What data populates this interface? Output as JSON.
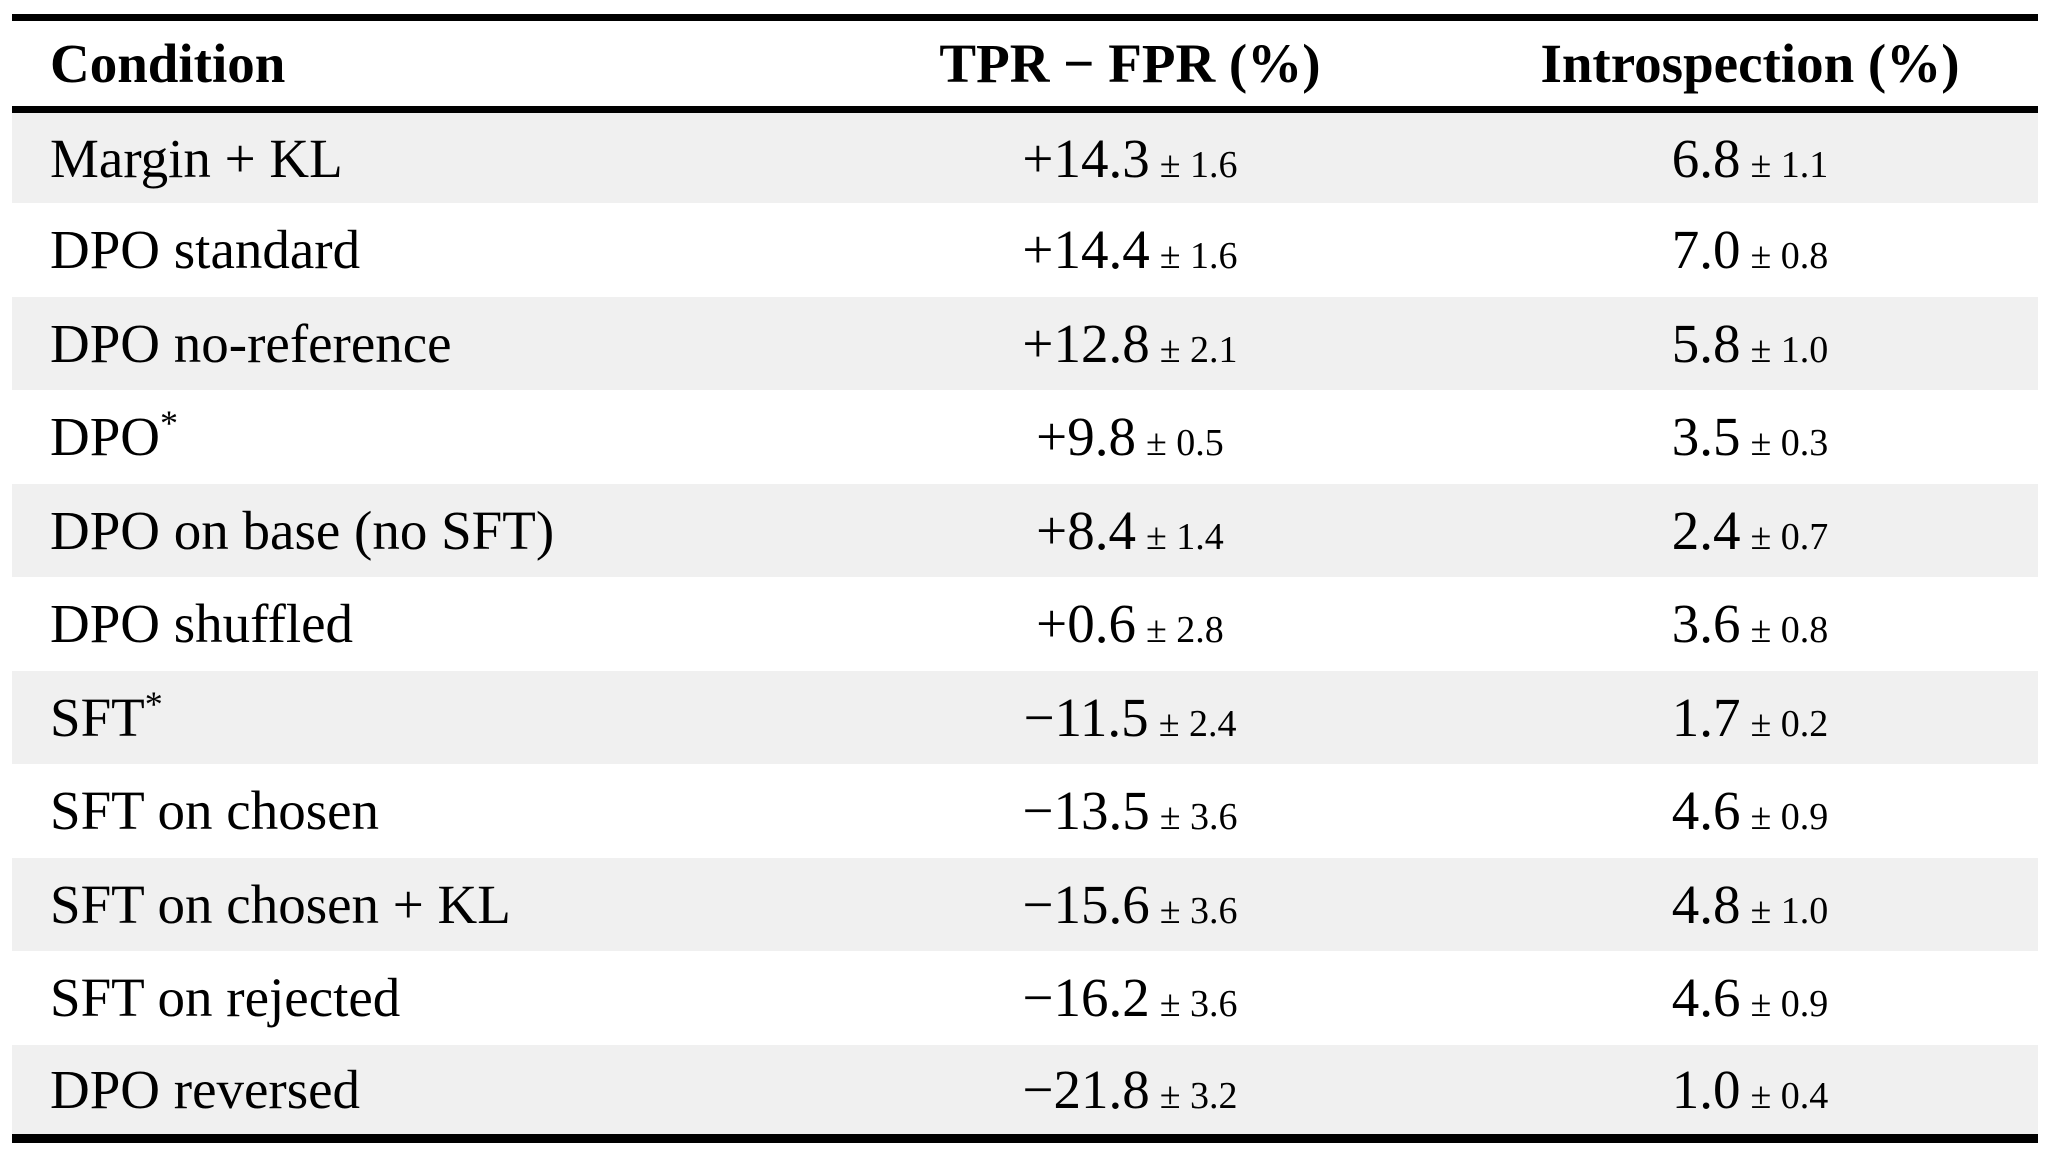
{
  "table": {
    "columns": {
      "condition": "Condition",
      "tpr": "TPR − FPR (%)",
      "introspection": "Introspection (%)"
    },
    "rows": [
      {
        "condition": "Margin + KL",
        "tpr": "+14.3",
        "tpr_err": "± 1.6",
        "intro": "6.8",
        "intro_err": "± 1.1"
      },
      {
        "condition": "DPO standard",
        "tpr": "+14.4",
        "tpr_err": "± 1.6",
        "intro": "7.0",
        "intro_err": "± 0.8"
      },
      {
        "condition": "DPO no-reference",
        "tpr": "+12.8",
        "tpr_err": "± 2.1",
        "intro": "5.8",
        "intro_err": "± 1.0"
      },
      {
        "condition": "DPO",
        "condition_sup": "*",
        "tpr": "+9.8",
        "tpr_err": "± 0.5",
        "intro": "3.5",
        "intro_err": "± 0.3"
      },
      {
        "condition": "DPO on base (no SFT)",
        "tpr": "+8.4",
        "tpr_err": "± 1.4",
        "intro": "2.4",
        "intro_err": "± 0.7"
      },
      {
        "condition": "DPO shuffled",
        "tpr": "+0.6",
        "tpr_err": "± 2.8",
        "intro": "3.6",
        "intro_err": "± 0.8"
      },
      {
        "condition": "SFT",
        "condition_sup": "*",
        "tpr": "−11.5",
        "tpr_err": "± 2.4",
        "intro": "1.7",
        "intro_err": "± 0.2"
      },
      {
        "condition": "SFT on chosen",
        "tpr": "−13.5",
        "tpr_err": "± 3.6",
        "intro": "4.6",
        "intro_err": "± 0.9"
      },
      {
        "condition": "SFT on chosen + KL",
        "tpr": "−15.6",
        "tpr_err": "± 3.6",
        "intro": "4.8",
        "intro_err": "± 1.0"
      },
      {
        "condition": "SFT on rejected",
        "tpr": "−16.2",
        "tpr_err": "± 3.6",
        "intro": "4.6",
        "intro_err": "± 0.9"
      },
      {
        "condition": "DPO reversed",
        "tpr": "−21.8",
        "tpr_err": "± 3.2",
        "intro": "1.0",
        "intro_err": "± 0.4"
      }
    ]
  },
  "colors": {
    "row_shade": "#f0f0f0",
    "rule": "#000000",
    "text": "#000000"
  }
}
